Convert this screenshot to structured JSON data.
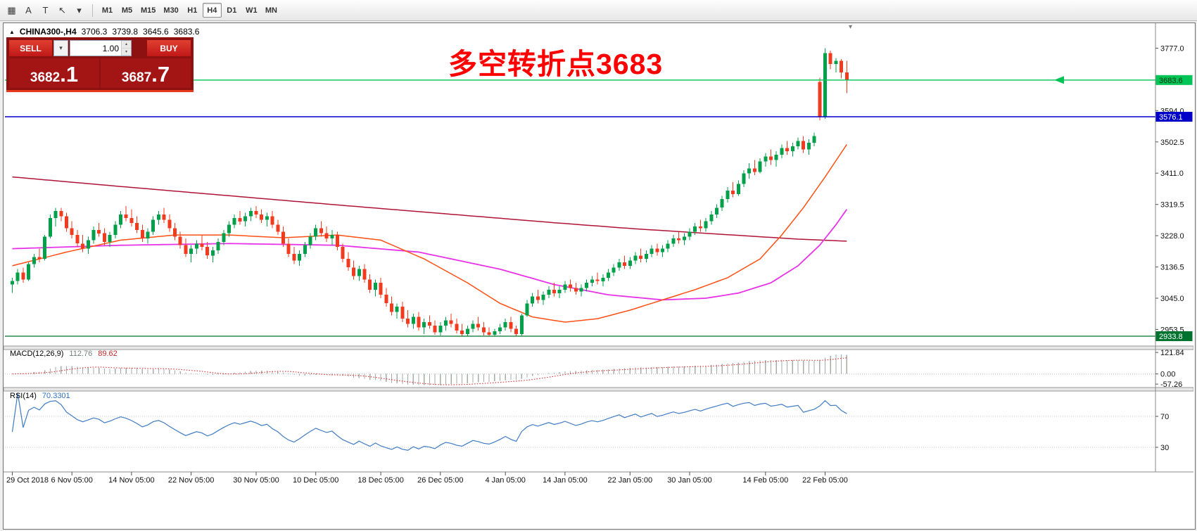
{
  "toolbar": {
    "tools": [
      {
        "name": "indicators-grid-icon",
        "glyph": "▦"
      },
      {
        "name": "text-label-icon",
        "glyph": "A"
      },
      {
        "name": "text-box-icon",
        "glyph": "T"
      },
      {
        "name": "cursor-tool-icon",
        "glyph": "↖"
      },
      {
        "name": "chevron-down-icon",
        "glyph": "▾"
      }
    ],
    "timeframes": [
      {
        "label": "M1",
        "active": false
      },
      {
        "label": "M5",
        "active": false
      },
      {
        "label": "M15",
        "active": false
      },
      {
        "label": "M30",
        "active": false
      },
      {
        "label": "H1",
        "active": false
      },
      {
        "label": "H4",
        "active": true
      },
      {
        "label": "D1",
        "active": false
      },
      {
        "label": "W1",
        "active": false
      },
      {
        "label": "MN",
        "active": false
      }
    ]
  },
  "chart_header": {
    "symbol": "CHINA300-,H4",
    "open": "3706.3",
    "high": "3739.8",
    "low": "3645.6",
    "close": "3683.6"
  },
  "trade_panel": {
    "sell_label": "SELL",
    "buy_label": "BUY",
    "volume": "1.00",
    "sell_price_main": "3682",
    "sell_price_frac": ".1",
    "buy_price_main": "3687",
    "buy_price_frac": ".7"
  },
  "annotation": {
    "text": "多空转折点3683",
    "color": "#FF0000"
  },
  "macd_panel": {
    "label": "MACD(12,26,9)",
    "value_main": "112.76",
    "value_signal": "89.62",
    "axis": [
      {
        "text": "121.84",
        "value": 121.84
      },
      {
        "text": "0.00",
        "value": 0
      },
      {
        "text": "-57.26",
        "value": -57.26
      }
    ]
  },
  "rsi_panel": {
    "label": "RSI(14)",
    "value": "70.3301",
    "axis": [
      {
        "text": "70",
        "value": 70
      },
      {
        "text": "30",
        "value": 30
      }
    ],
    "levels": [
      70,
      30
    ]
  },
  "price_axis": {
    "ticks": [
      {
        "text": "3777.0",
        "value": 3777.0
      },
      {
        "text": "3594.0",
        "value": 3594.0
      },
      {
        "text": "3502.5",
        "value": 3502.5
      },
      {
        "text": "3411.0",
        "value": 3411.0
      },
      {
        "text": "3319.5",
        "value": 3319.5
      },
      {
        "text": "3228.0",
        "value": 3228.0
      },
      {
        "text": "3136.5",
        "value": 3136.5
      },
      {
        "text": "3045.0",
        "value": 3045.0
      },
      {
        "text": "2953.5",
        "value": 2953.5
      }
    ]
  },
  "hlines": [
    {
      "price": 3683.6,
      "label": "3683.6",
      "color": "#00C455",
      "tag_bg": "#00C455",
      "tag_fg": "#00320F",
      "width": 1.4,
      "arrow": true
    },
    {
      "price": 3576.1,
      "label": "3576.1",
      "color": "#0000C8",
      "tag_bg": "#0000C8",
      "tag_fg": "#FFFFFF",
      "width": 1.4,
      "arrow": false
    },
    {
      "price": 2933.8,
      "label": "2933.8",
      "color": "#00732F",
      "tag_bg": "#00732F",
      "tag_fg": "#FFFFFF",
      "width": 1.2,
      "arrow": false
    }
  ],
  "time_axis": {
    "labels": [
      {
        "index": 0,
        "text": "29 Oct 2018"
      },
      {
        "index": 11,
        "text": "6 Nov 05:00"
      },
      {
        "index": 22,
        "text": "14 Nov 05:00"
      },
      {
        "index": 33,
        "text": "22 Nov 05:00"
      },
      {
        "index": 45,
        "text": "30 Nov 05:00"
      },
      {
        "index": 56,
        "text": "10 Dec 05:00"
      },
      {
        "index": 68,
        "text": "18 Dec 05:00"
      },
      {
        "index": 79,
        "text": "26 Dec 05:00"
      },
      {
        "index": 91,
        "text": "4 Jan 05:00"
      },
      {
        "index": 102,
        "text": "14 Jan 05:00"
      },
      {
        "index": 114,
        "text": "22 Jan 05:00"
      },
      {
        "index": 125,
        "text": "30 Jan 05:00"
      },
      {
        "index": 139,
        "text": "14 Feb 05:00"
      },
      {
        "index": 150,
        "text": "22 Feb 05:00"
      }
    ]
  },
  "chart_data": {
    "type": "candlestick",
    "symbol": "CHINA300-",
    "timeframe": "H4",
    "title": "CHINA300- H4 candlestick chart with MACD(12,26,9) and RSI(14)",
    "price_range": [
      2905,
      3850
    ],
    "up_color": "#00A04A",
    "down_color": "#F23B1E",
    "last_ohlc": {
      "open": 3706.3,
      "high": 3739.8,
      "low": 3645.6,
      "close": 3683.6
    },
    "ohlc": [
      [
        3085,
        3105,
        3060,
        3095
      ],
      [
        3095,
        3130,
        3085,
        3120
      ],
      [
        3120,
        3135,
        3090,
        3100
      ],
      [
        3100,
        3150,
        3095,
        3145
      ],
      [
        3145,
        3175,
        3135,
        3165
      ],
      [
        3165,
        3190,
        3150,
        3160
      ],
      [
        3160,
        3230,
        3155,
        3225
      ],
      [
        3225,
        3290,
        3220,
        3280
      ],
      [
        3280,
        3310,
        3255,
        3300
      ],
      [
        3300,
        3310,
        3270,
        3285
      ],
      [
        3285,
        3295,
        3240,
        3250
      ],
      [
        3250,
        3270,
        3220,
        3230
      ],
      [
        3230,
        3245,
        3195,
        3205
      ],
      [
        3205,
        3230,
        3180,
        3190
      ],
      [
        3190,
        3225,
        3175,
        3215
      ],
      [
        3215,
        3255,
        3205,
        3245
      ],
      [
        3245,
        3265,
        3225,
        3235
      ],
      [
        3235,
        3250,
        3200,
        3210
      ],
      [
        3210,
        3240,
        3195,
        3230
      ],
      [
        3230,
        3270,
        3220,
        3260
      ],
      [
        3260,
        3300,
        3250,
        3290
      ],
      [
        3290,
        3315,
        3270,
        3280
      ],
      [
        3280,
        3305,
        3255,
        3265
      ],
      [
        3265,
        3285,
        3235,
        3245
      ],
      [
        3245,
        3260,
        3210,
        3220
      ],
      [
        3220,
        3250,
        3205,
        3240
      ],
      [
        3240,
        3285,
        3230,
        3275
      ],
      [
        3275,
        3300,
        3260,
        3290
      ],
      [
        3290,
        3310,
        3265,
        3275
      ],
      [
        3275,
        3290,
        3240,
        3250
      ],
      [
        3250,
        3265,
        3215,
        3225
      ],
      [
        3225,
        3240,
        3190,
        3200
      ],
      [
        3200,
        3220,
        3165,
        3175
      ],
      [
        3175,
        3200,
        3150,
        3190
      ],
      [
        3190,
        3215,
        3175,
        3205
      ],
      [
        3205,
        3230,
        3185,
        3195
      ],
      [
        3195,
        3210,
        3160,
        3170
      ],
      [
        3170,
        3195,
        3150,
        3185
      ],
      [
        3185,
        3220,
        3175,
        3210
      ],
      [
        3210,
        3245,
        3200,
        3235
      ],
      [
        3235,
        3270,
        3225,
        3260
      ],
      [
        3260,
        3290,
        3250,
        3280
      ],
      [
        3280,
        3300,
        3260,
        3270
      ],
      [
        3270,
        3295,
        3255,
        3285
      ],
      [
        3285,
        3310,
        3270,
        3300
      ],
      [
        3300,
        3315,
        3280,
        3290
      ],
      [
        3290,
        3305,
        3265,
        3275
      ],
      [
        3275,
        3295,
        3255,
        3285
      ],
      [
        3285,
        3300,
        3250,
        3260
      ],
      [
        3260,
        3275,
        3230,
        3240
      ],
      [
        3240,
        3255,
        3195,
        3205
      ],
      [
        3205,
        3220,
        3165,
        3175
      ],
      [
        3175,
        3195,
        3145,
        3155
      ],
      [
        3155,
        3185,
        3140,
        3175
      ],
      [
        3175,
        3210,
        3165,
        3200
      ],
      [
        3200,
        3235,
        3190,
        3225
      ],
      [
        3225,
        3260,
        3215,
        3250
      ],
      [
        3250,
        3270,
        3225,
        3235
      ],
      [
        3235,
        3255,
        3210,
        3220
      ],
      [
        3220,
        3245,
        3200,
        3230
      ],
      [
        3230,
        3240,
        3185,
        3195
      ],
      [
        3195,
        3205,
        3150,
        3160
      ],
      [
        3160,
        3180,
        3125,
        3135
      ],
      [
        3135,
        3155,
        3100,
        3110
      ],
      [
        3110,
        3140,
        3095,
        3130
      ],
      [
        3130,
        3145,
        3090,
        3100
      ],
      [
        3100,
        3115,
        3060,
        3070
      ],
      [
        3070,
        3100,
        3050,
        3090
      ],
      [
        3090,
        3105,
        3045,
        3055
      ],
      [
        3055,
        3075,
        3020,
        3030
      ],
      [
        3030,
        3050,
        2995,
        3005
      ],
      [
        3005,
        3030,
        2985,
        3020
      ],
      [
        3020,
        3035,
        2975,
        2985
      ],
      [
        2985,
        3010,
        2960,
        2970
      ],
      [
        2970,
        3000,
        2955,
        2990
      ],
      [
        2990,
        3005,
        2950,
        2960
      ],
      [
        2960,
        2985,
        2940,
        2975
      ],
      [
        2975,
        2995,
        2955,
        2965
      ],
      [
        2965,
        2980,
        2938,
        2945
      ],
      [
        2945,
        2975,
        2936,
        2965
      ],
      [
        2965,
        2990,
        2950,
        2980
      ],
      [
        2980,
        3000,
        2960,
        2970
      ],
      [
        2970,
        2985,
        2942,
        2950
      ],
      [
        2950,
        2970,
        2934,
        2940
      ],
      [
        2940,
        2965,
        2934,
        2955
      ],
      [
        2955,
        2980,
        2945,
        2970
      ],
      [
        2970,
        2990,
        2950,
        2960
      ],
      [
        2960,
        2975,
        2936,
        2945
      ],
      [
        2945,
        2960,
        2933.8,
        2938
      ],
      [
        2938,
        2955,
        2934,
        2948
      ],
      [
        2948,
        2970,
        2940,
        2960
      ],
      [
        2960,
        2985,
        2950,
        2975
      ],
      [
        2975,
        2990,
        2945,
        2955
      ],
      [
        2955,
        2965,
        2934,
        2940
      ],
      [
        2940,
        3000,
        2936,
        2995
      ],
      [
        2995,
        3040,
        2990,
        3030
      ],
      [
        3030,
        3060,
        3020,
        3050
      ],
      [
        3050,
        3070,
        3030,
        3040
      ],
      [
        3040,
        3065,
        3025,
        3055
      ],
      [
        3055,
        3080,
        3045,
        3070
      ],
      [
        3070,
        3090,
        3050,
        3060
      ],
      [
        3060,
        3080,
        3045,
        3070
      ],
      [
        3070,
        3095,
        3060,
        3085
      ],
      [
        3085,
        3100,
        3065,
        3075
      ],
      [
        3075,
        3090,
        3055,
        3065
      ],
      [
        3065,
        3085,
        3050,
        3075
      ],
      [
        3075,
        3100,
        3065,
        3090
      ],
      [
        3090,
        3110,
        3080,
        3100
      ],
      [
        3100,
        3120,
        3085,
        3095
      ],
      [
        3095,
        3115,
        3080,
        3105
      ],
      [
        3105,
        3130,
        3095,
        3120
      ],
      [
        3120,
        3145,
        3110,
        3135
      ],
      [
        3135,
        3160,
        3125,
        3150
      ],
      [
        3150,
        3170,
        3130,
        3140
      ],
      [
        3140,
        3165,
        3130,
        3155
      ],
      [
        3155,
        3180,
        3145,
        3170
      ],
      [
        3170,
        3190,
        3150,
        3160
      ],
      [
        3160,
        3185,
        3150,
        3175
      ],
      [
        3175,
        3200,
        3165,
        3190
      ],
      [
        3190,
        3205,
        3170,
        3180
      ],
      [
        3180,
        3200,
        3165,
        3190
      ],
      [
        3190,
        3215,
        3180,
        3205
      ],
      [
        3205,
        3230,
        3195,
        3220
      ],
      [
        3220,
        3240,
        3205,
        3215
      ],
      [
        3215,
        3235,
        3200,
        3225
      ],
      [
        3225,
        3250,
        3215,
        3240
      ],
      [
        3240,
        3265,
        3230,
        3255
      ],
      [
        3255,
        3275,
        3240,
        3250
      ],
      [
        3250,
        3280,
        3240,
        3270
      ],
      [
        3270,
        3300,
        3260,
        3290
      ],
      [
        3290,
        3320,
        3280,
        3310
      ],
      [
        3310,
        3345,
        3300,
        3335
      ],
      [
        3335,
        3370,
        3325,
        3360
      ],
      [
        3360,
        3385,
        3340,
        3350
      ],
      [
        3350,
        3390,
        3345,
        3380
      ],
      [
        3380,
        3420,
        3370,
        3410
      ],
      [
        3410,
        3440,
        3395,
        3425
      ],
      [
        3425,
        3450,
        3405,
        3415
      ],
      [
        3415,
        3455,
        3410,
        3445
      ],
      [
        3445,
        3470,
        3430,
        3460
      ],
      [
        3460,
        3480,
        3435,
        3450
      ],
      [
        3450,
        3475,
        3430,
        3465
      ],
      [
        3465,
        3495,
        3455,
        3485
      ],
      [
        3485,
        3505,
        3465,
        3475
      ],
      [
        3475,
        3500,
        3460,
        3490
      ],
      [
        3490,
        3515,
        3480,
        3505
      ],
      [
        3505,
        3520,
        3470,
        3480
      ],
      [
        3480,
        3510,
        3465,
        3500
      ],
      [
        3500,
        3530,
        3490,
        3520
      ],
      [
        3678,
        3690,
        3566,
        3576
      ],
      [
        3576,
        3777,
        3570,
        3762
      ],
      [
        3762,
        3770,
        3715,
        3731
      ],
      [
        3731,
        3748,
        3706,
        3740
      ],
      [
        3740,
        3745,
        3688,
        3706
      ],
      [
        3706.3,
        3739.8,
        3645.6,
        3683.6
      ]
    ],
    "overlays": [
      {
        "name": "ma-slow-darkred-line",
        "color": "#B01335",
        "width": 1.5,
        "points": [
          [
            0,
            3400
          ],
          [
            20,
            3372
          ],
          [
            40,
            3345
          ],
          [
            60,
            3318
          ],
          [
            80,
            3292
          ],
          [
            100,
            3266
          ],
          [
            115,
            3248
          ],
          [
            125,
            3238
          ],
          [
            135,
            3228
          ],
          [
            145,
            3218
          ],
          [
            154,
            3212
          ]
        ]
      },
      {
        "name": "ma-medium-magenta-line",
        "color": "#E832E8",
        "width": 1.8,
        "points": [
          [
            0,
            3190
          ],
          [
            20,
            3200
          ],
          [
            40,
            3205
          ],
          [
            60,
            3200
          ],
          [
            75,
            3180
          ],
          [
            90,
            3130
          ],
          [
            100,
            3085
          ],
          [
            110,
            3055
          ],
          [
            120,
            3040
          ],
          [
            128,
            3045
          ],
          [
            134,
            3060
          ],
          [
            140,
            3090
          ],
          [
            145,
            3140
          ],
          [
            149,
            3200
          ],
          [
            152,
            3260
          ],
          [
            154,
            3305
          ]
        ]
      },
      {
        "name": "ma-fast-orange-line",
        "color": "#FF4F12",
        "width": 1.5,
        "points": [
          [
            0,
            3140
          ],
          [
            10,
            3180
          ],
          [
            20,
            3215
          ],
          [
            30,
            3230
          ],
          [
            40,
            3230
          ],
          [
            50,
            3222
          ],
          [
            60,
            3230
          ],
          [
            68,
            3215
          ],
          [
            76,
            3160
          ],
          [
            84,
            3090
          ],
          [
            90,
            3030
          ],
          [
            96,
            2990
          ],
          [
            102,
            2975
          ],
          [
            108,
            2985
          ],
          [
            114,
            3010
          ],
          [
            120,
            3040
          ],
          [
            126,
            3070
          ],
          [
            132,
            3105
          ],
          [
            138,
            3160
          ],
          [
            142,
            3230
          ],
          [
            146,
            3310
          ],
          [
            150,
            3400
          ],
          [
            154,
            3495
          ]
        ]
      }
    ]
  }
}
